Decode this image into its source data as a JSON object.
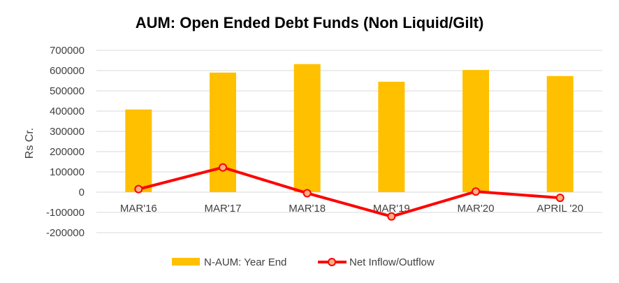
{
  "chart_data": {
    "type": "bar",
    "title": "AUM: Open Ended Debt Funds (Non Liquid/Gilt)",
    "xlabel": "",
    "ylabel": "Rs Cr.",
    "categories": [
      "MAR'16",
      "MAR'17",
      "MAR'18",
      "MAR'19",
      "MAR'20",
      "APRIL '20"
    ],
    "series": [
      {
        "name": "N-AUM: Year End",
        "type": "bar",
        "color": "#FFC000",
        "values": [
          408000,
          590000,
          632000,
          545000,
          603000,
          573000
        ]
      },
      {
        "name": "Net Inflow/Outflow",
        "type": "line",
        "color": "#FF0000",
        "marker_fill": "#F4B183",
        "values": [
          15000,
          122000,
          -5000,
          -120000,
          3000,
          -28000
        ]
      }
    ],
    "ylim": [
      -200000,
      700000
    ],
    "yticks": [
      "700000",
      "600000",
      "500000",
      "400000",
      "300000",
      "200000",
      "100000",
      "0",
      "-100000",
      "-200000"
    ],
    "grid": true,
    "legend_position": "bottom"
  }
}
